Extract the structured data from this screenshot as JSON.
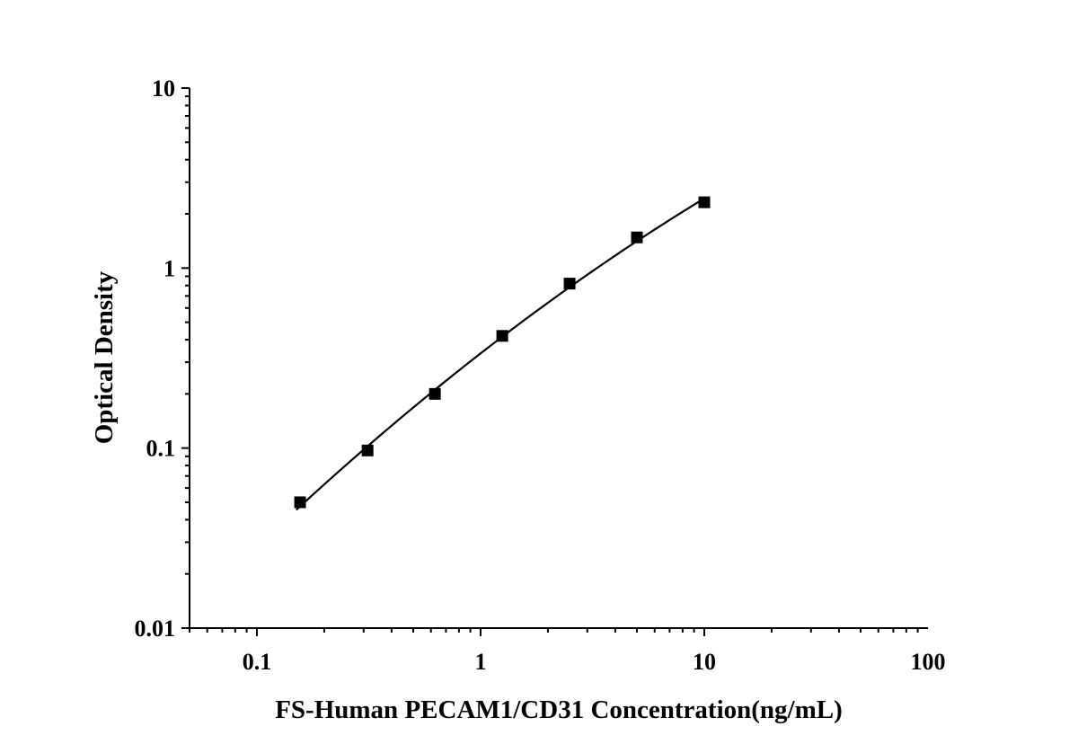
{
  "chart_data": {
    "type": "scatter",
    "title": "",
    "xlabel": "FS-Human PECAM1/CD31 Concentration(ng/mL)",
    "ylabel": "Optical Density",
    "xscale": "log",
    "yscale": "log",
    "xlim": [
      0.05,
      100
    ],
    "ylim": [
      0.01,
      10
    ],
    "xticks": [
      {
        "value": 0.1,
        "label": "0.1"
      },
      {
        "value": 1,
        "label": "1"
      },
      {
        "value": 10,
        "label": "10"
      },
      {
        "value": 100,
        "label": "100"
      }
    ],
    "yticks": [
      {
        "value": 0.01,
        "label": "0.01"
      },
      {
        "value": 0.1,
        "label": "0.1"
      },
      {
        "value": 1,
        "label": "1"
      },
      {
        "value": 10,
        "label": "10"
      }
    ],
    "grid": false,
    "legend": "none",
    "series": [
      {
        "marker": "square",
        "color": "#000000",
        "fit_line": true,
        "points": [
          {
            "x": 0.156,
            "y": 0.05
          },
          {
            "x": 0.3125,
            "y": 0.097
          },
          {
            "x": 0.625,
            "y": 0.2
          },
          {
            "x": 1.25,
            "y": 0.42
          },
          {
            "x": 2.5,
            "y": 0.82
          },
          {
            "x": 5,
            "y": 1.48
          },
          {
            "x": 10,
            "y": 2.32
          }
        ],
        "fit_x_range": [
          0.15,
          10
        ]
      }
    ]
  }
}
